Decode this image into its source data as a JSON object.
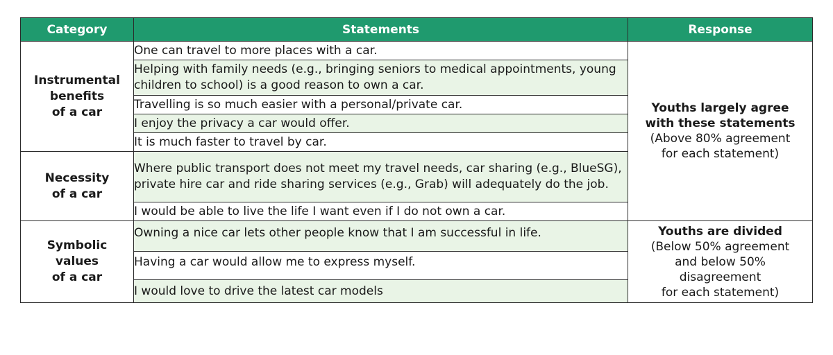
{
  "headers": {
    "category": "Category",
    "statements": "Statements",
    "response": "Response"
  },
  "categories": [
    {
      "label_lines": [
        "Instrumental",
        "benefits",
        "of a car"
      ]
    },
    {
      "label_lines": [
        "Necessity",
        "of a car"
      ]
    },
    {
      "label_lines": [
        "Symbolic",
        "values",
        "of a car"
      ]
    }
  ],
  "statements": [
    "One can travel to more places with a car.",
    "Helping with family needs (e.g., bringing seniors to medical appointments, young children to school) is a good reason to own a car.",
    "Travelling is so much easier with a personal/private car.",
    "I enjoy the privacy a car would offer.",
    "It is much faster to travel by car.",
    "Where public transport does not meet my travel needs, car sharing (e.g., BlueSG), private hire car and ride sharing services (e.g., Grab) will adequately do the job.",
    "I would be able to live the life I want even if I do not own a car.",
    "Owning a nice car lets other people know that I am successful in life.",
    "Having a car would allow me to express myself.",
    "I  would love to drive the latest car models"
  ],
  "responses": [
    {
      "headline_lines": [
        "Youths largely agree",
        "with these statements"
      ],
      "detail_lines": [
        "(Above 80% agreement",
        "for each statement)"
      ]
    },
    {
      "headline_lines": [
        "Youths are divided"
      ],
      "detail_lines": [
        "(Below 50% agreement",
        "and  below 50%",
        "disagreement",
        "for each statement)"
      ]
    }
  ],
  "colors": {
    "header_bg": "#1f9a6e",
    "header_text": "#ffffff",
    "row_green": "#e9f4e6",
    "row_white": "#ffffff",
    "border": "#2b2b2b"
  }
}
